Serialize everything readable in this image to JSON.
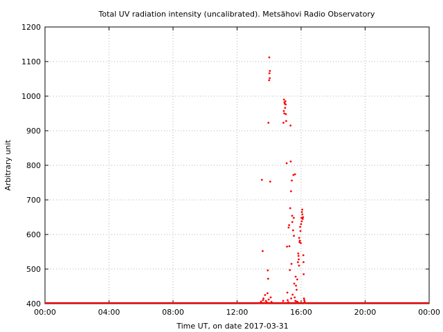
{
  "chart_data": {
    "type": "scatter",
    "title": "Total UV radiation intensity (uncalibrated). Metsähovi Radio Observatory",
    "xlabel": "Time UT, on date 2017-03-31",
    "ylabel": "Arbitrary unit",
    "xlim": [
      0,
      24
    ],
    "ylim": [
      400,
      1200
    ],
    "x_unit": "hours UT",
    "x_ticks": [
      {
        "value": 0,
        "label": "00:00"
      },
      {
        "value": 4,
        "label": "04:00"
      },
      {
        "value": 8,
        "label": "08:00"
      },
      {
        "value": 12,
        "label": "12:00"
      },
      {
        "value": 16,
        "label": "16:00"
      },
      {
        "value": 20,
        "label": "20:00"
      },
      {
        "value": 24,
        "label": "00:00"
      }
    ],
    "y_ticks": [
      400,
      500,
      600,
      700,
      800,
      900,
      1000,
      1100,
      1200
    ],
    "grid": true,
    "grid_style": "dotted",
    "point_color": "#ff0000",
    "baseline": {
      "x_range": [
        0,
        24
      ],
      "y": 400
    },
    "series": [
      {
        "points": [
          [
            13.4,
            402
          ],
          [
            13.5,
            406
          ],
          [
            13.55,
            758
          ],
          [
            13.6,
            552
          ],
          [
            13.62,
            410
          ],
          [
            13.65,
            415
          ],
          [
            13.7,
            402
          ],
          [
            13.75,
            425
          ],
          [
            13.8,
            408
          ],
          [
            13.85,
            404
          ],
          [
            13.9,
            430
          ],
          [
            13.92,
            496
          ],
          [
            13.94,
            472
          ],
          [
            13.96,
            923
          ],
          [
            13.97,
            412
          ],
          [
            14.0,
            1046
          ],
          [
            14.01,
            1112
          ],
          [
            14.02,
            1066
          ],
          [
            14.04,
            1052
          ],
          [
            14.05,
            1073
          ],
          [
            14.07,
            753
          ],
          [
            14.1,
            418
          ],
          [
            14.15,
            405
          ],
          [
            14.85,
            402
          ],
          [
            14.88,
            408
          ],
          [
            14.9,
            923
          ],
          [
            14.92,
            957
          ],
          [
            14.93,
            990
          ],
          [
            14.95,
            950
          ],
          [
            14.96,
            982
          ],
          [
            14.98,
            978
          ],
          [
            15.0,
            966
          ],
          [
            15.02,
            985
          ],
          [
            15.04,
            976
          ],
          [
            15.05,
            948
          ],
          [
            15.07,
            928
          ],
          [
            15.1,
            806
          ],
          [
            15.12,
            565
          ],
          [
            15.14,
            432
          ],
          [
            15.16,
            410
          ],
          [
            15.2,
            404
          ],
          [
            15.22,
            620
          ],
          [
            15.25,
            627
          ],
          [
            15.27,
            566
          ],
          [
            15.3,
            497
          ],
          [
            15.32,
            676
          ],
          [
            15.34,
            915
          ],
          [
            15.35,
            811
          ],
          [
            15.37,
            725
          ],
          [
            15.38,
            415
          ],
          [
            15.4,
            515
          ],
          [
            15.42,
            756
          ],
          [
            15.44,
            654
          ],
          [
            15.45,
            636
          ],
          [
            15.47,
            426
          ],
          [
            15.5,
            612
          ],
          [
            15.52,
            772
          ],
          [
            15.54,
            648
          ],
          [
            15.55,
            596
          ],
          [
            15.57,
            458
          ],
          [
            15.6,
            418
          ],
          [
            15.62,
            774
          ],
          [
            15.64,
            408
          ],
          [
            15.66,
            478
          ],
          [
            15.68,
            452
          ],
          [
            15.7,
            406
          ],
          [
            15.72,
            440
          ],
          [
            15.74,
            402
          ],
          [
            15.76,
            470
          ],
          [
            15.78,
            405
          ],
          [
            15.8,
            520
          ],
          [
            15.82,
            545
          ],
          [
            15.84,
            538
          ],
          [
            15.85,
            528
          ],
          [
            15.87,
            510
          ],
          [
            15.88,
            590
          ],
          [
            15.9,
            578
          ],
          [
            15.92,
            582
          ],
          [
            15.94,
            622
          ],
          [
            15.96,
            610
          ],
          [
            15.98,
            575
          ],
          [
            16.0,
            630
          ],
          [
            16.02,
            648
          ],
          [
            16.04,
            638
          ],
          [
            16.05,
            665
          ],
          [
            16.07,
            672
          ],
          [
            16.08,
            658
          ],
          [
            16.1,
            645
          ],
          [
            16.12,
            650
          ],
          [
            16.14,
            540
          ],
          [
            16.15,
            520
          ],
          [
            16.16,
            485
          ],
          [
            16.18,
            415
          ],
          [
            16.2,
            410
          ],
          [
            16.22,
            405
          ],
          [
            16.25,
            402
          ]
        ]
      }
    ]
  }
}
